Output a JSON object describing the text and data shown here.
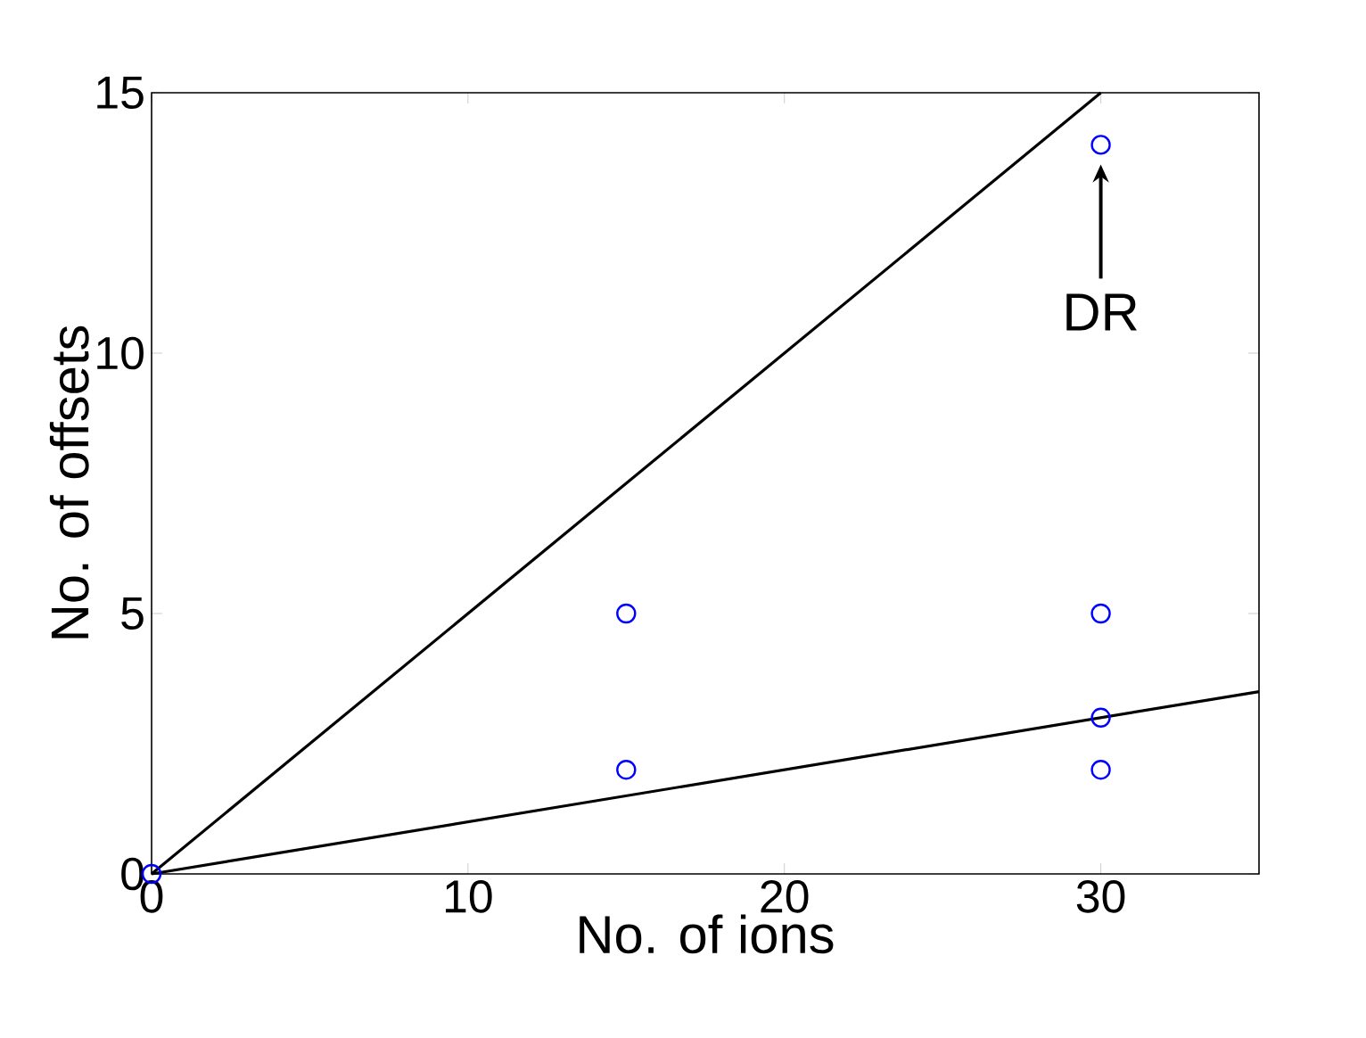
{
  "chart_data": {
    "type": "scatter",
    "xlabel": "No. of ions",
    "ylabel": "No. of offsets",
    "xlim": [
      0,
      35
    ],
    "ylim": [
      0,
      15
    ],
    "xticks": [
      0,
      10,
      20,
      30
    ],
    "yticks": [
      0,
      5,
      10,
      15
    ],
    "series": [
      {
        "marker": "circle",
        "color": "#0000ff",
        "x": [
          0,
          15,
          15,
          30,
          30,
          30,
          30
        ],
        "values": [
          0,
          5,
          2,
          14,
          5,
          3,
          2
        ]
      },
      {
        "type": "line",
        "color": "#000000",
        "x": [
          0,
          30
        ],
        "values": [
          0,
          15
        ]
      },
      {
        "type": "line",
        "color": "#000000",
        "x": [
          0,
          35
        ],
        "values": [
          0,
          3.5
        ]
      }
    ],
    "annotations": [
      {
        "text": "DR",
        "x": 30,
        "y": 14
      }
    ]
  }
}
